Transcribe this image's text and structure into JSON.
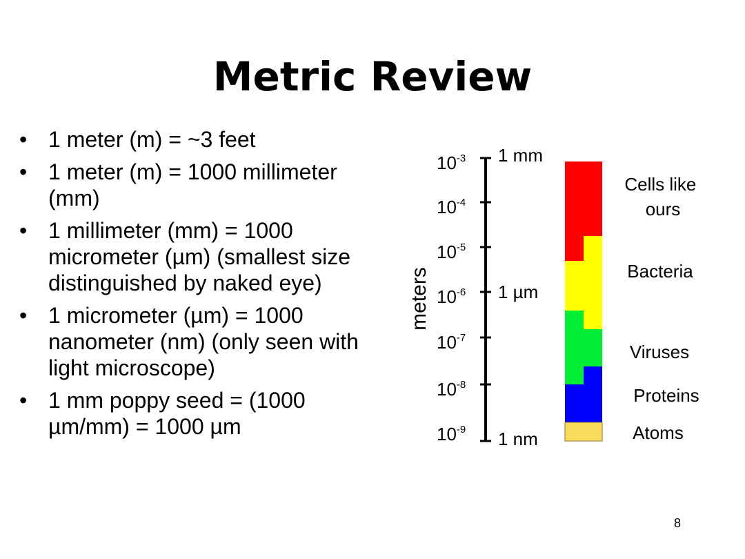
{
  "slide": {
    "title": "Metric Review",
    "page_number": "8"
  },
  "bullets": [
    "1 meter (m) = ~3 feet",
    "1 meter (m) = 1000 millimeter (mm)",
    "1 millimeter (mm) = 1000 micrometer (µm) (smallest size distinguished by naked eye)",
    "1 micrometer (µm) = 1000 nanometer (nm) (only seen with light microscope)",
    "1 mm poppy seed = (1000 µm/mm) = 1000 µm"
  ],
  "scale": {
    "axis_label": "meters",
    "ticks": [
      {
        "base": "10",
        "exponent": "-3",
        "unit": "1 mm"
      },
      {
        "base": "10",
        "exponent": "-4",
        "unit": ""
      },
      {
        "base": "10",
        "exponent": "-5",
        "unit": ""
      },
      {
        "base": "10",
        "exponent": "-6",
        "unit": "1 µm"
      },
      {
        "base": "10",
        "exponent": "-7",
        "unit": ""
      },
      {
        "base": "10",
        "exponent": "-8",
        "unit": ""
      },
      {
        "base": "10",
        "exponent": "-9",
        "unit": "1 nm"
      }
    ]
  },
  "categories": [
    {
      "label_lines": [
        "Cells like",
        "ours"
      ],
      "color": "#ff0000"
    },
    {
      "label_lines": [
        "Bacteria"
      ],
      "color": "#ffff00"
    },
    {
      "label_lines": [
        "Viruses"
      ],
      "color": "#00ee33"
    },
    {
      "label_lines": [
        "Proteins"
      ],
      "color": "#0000ff"
    },
    {
      "label_lines": [
        "Atoms"
      ],
      "color": "#f9dc5c"
    }
  ]
}
